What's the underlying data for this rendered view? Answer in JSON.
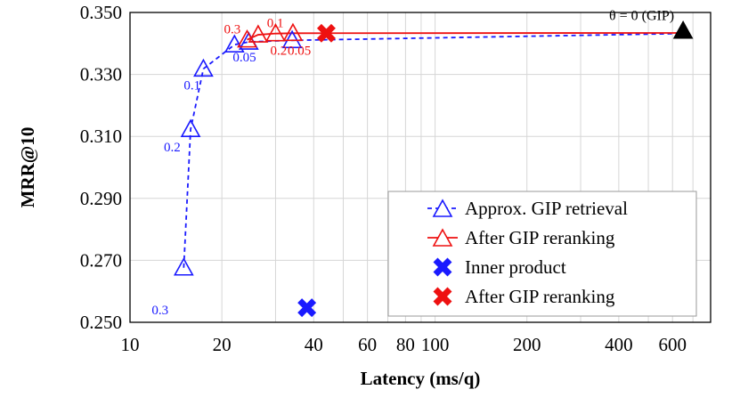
{
  "chart_data": {
    "type": "line",
    "xscale": "log",
    "xlabel": "Latency (ms/q)",
    "ylabel": "MRR@10",
    "xlim": [
      10,
      800
    ],
    "ylim": [
      0.25,
      0.35
    ],
    "xticks": [
      10,
      20,
      40,
      60,
      80,
      100,
      200,
      400,
      600
    ],
    "yticks": [
      "0.250",
      "0.270",
      "0.290",
      "0.310",
      "0.330",
      "0.350"
    ],
    "grid": true,
    "legend_position": "bottom-right",
    "series": [
      {
        "name": "Approx. GIP retrieval",
        "style": "dashed",
        "marker": "triangle",
        "color": "#1a1aff",
        "x": [
          15.0,
          15.8,
          17.4,
          22.0,
          24.5,
          34.0,
          650.0
        ],
        "y": [
          0.2676,
          0.3123,
          0.3318,
          0.3396,
          0.3405,
          0.341,
          0.3432
        ],
        "labels": [
          "0.3",
          "0.2",
          "0.1",
          "0.05",
          "",
          "",
          ""
        ]
      },
      {
        "name": "After GIP reranking",
        "style": "solid",
        "marker": "triangle",
        "color": "#ee1111",
        "x": [
          24.2,
          26.3,
          30.0,
          34.2,
          650.0
        ],
        "y": [
          0.3412,
          0.3428,
          0.3432,
          0.3433,
          0.3434
        ],
        "labels": [
          "0.3",
          "",
          "0.2",
          "0.05",
          ""
        ],
        "extra_labels": [
          "0.1"
        ]
      },
      {
        "name": "Inner product",
        "marker": "x",
        "color": "#1a1aff",
        "x": [
          38.0
        ],
        "y": [
          0.2547
        ]
      },
      {
        "name": "After GIP reranking",
        "marker": "x",
        "color": "#ee1111",
        "x": [
          44.0
        ],
        "y": [
          0.3433
        ]
      }
    ],
    "annotation_gip": {
      "text": "θ = 0 (GIP)",
      "x": 650.0,
      "y": 0.3432,
      "color": "#000000"
    }
  }
}
